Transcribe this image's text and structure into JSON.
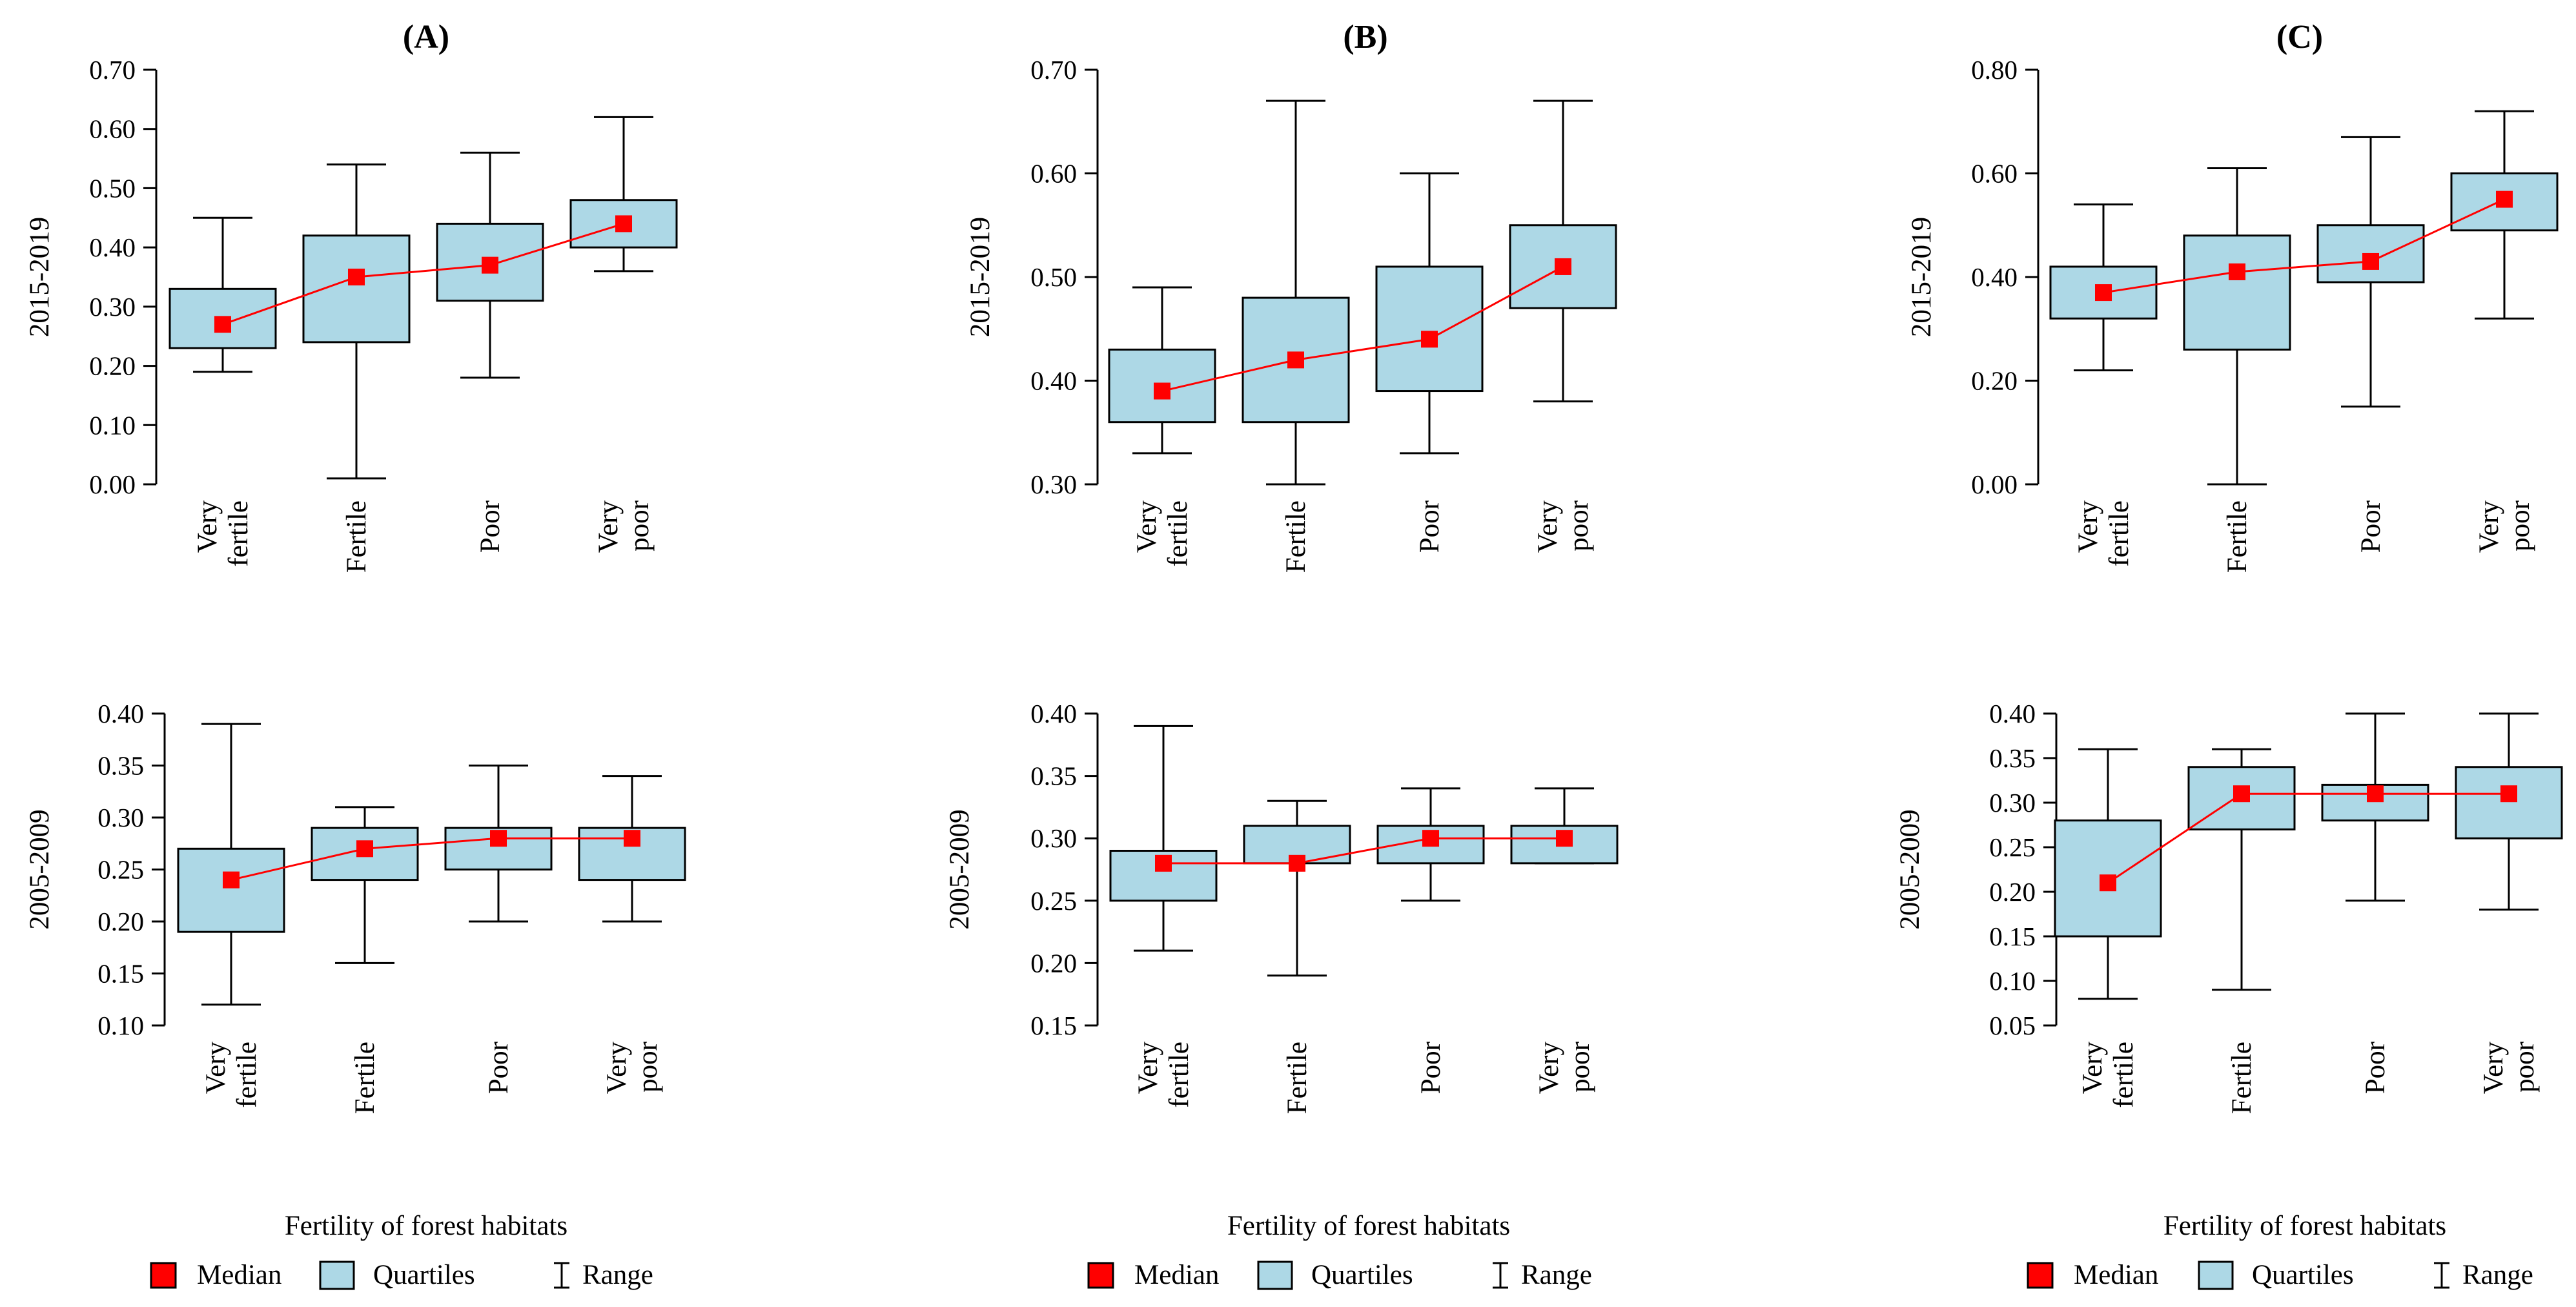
{
  "colors": {
    "median": "#ff0000",
    "box": "#add8e6",
    "line": "#000000",
    "median_line": "#ff0000"
  },
  "legend": {
    "median_label": "Median",
    "quartiles_label": "Quartiles",
    "range_label": "Range"
  },
  "x_axis_title": "Fertility of forest habitats",
  "categories": [
    [
      "Very",
      "fertile"
    ],
    [
      "Fertile"
    ],
    [
      "Poor"
    ],
    [
      "Very",
      "poor"
    ]
  ],
  "chart_data": [
    {
      "type": "box",
      "title": "(A)",
      "ylabel": "2015-2019",
      "ylim": [
        0,
        0.7
      ],
      "yticks": [
        "0.00",
        "0.10",
        "0.20",
        "0.30",
        "0.40",
        "0.50",
        "0.60",
        "0.70"
      ],
      "min": [
        0.19,
        0.01,
        0.18,
        0.36
      ],
      "q1": [
        0.23,
        0.24,
        0.31,
        0.4
      ],
      "median": [
        0.27,
        0.35,
        0.37,
        0.44
      ],
      "q3": [
        0.33,
        0.42,
        0.44,
        0.48
      ],
      "max": [
        0.45,
        0.54,
        0.56,
        0.62
      ]
    },
    {
      "type": "box",
      "title": "(B)",
      "ylabel": "2015-2019",
      "ylim": [
        0.3,
        0.7
      ],
      "yticks": [
        "0.30",
        "0.40",
        "0.50",
        "0.60",
        "0.70"
      ],
      "min": [
        0.33,
        0.3,
        0.33,
        0.38
      ],
      "q1": [
        0.36,
        0.36,
        0.39,
        0.47
      ],
      "median": [
        0.39,
        0.42,
        0.44,
        0.51
      ],
      "q3": [
        0.43,
        0.48,
        0.51,
        0.55
      ],
      "max": [
        0.49,
        0.67,
        0.6,
        0.67
      ]
    },
    {
      "type": "box",
      "title": "(C)",
      "ylabel": "2015-2019",
      "ylim": [
        0,
        0.8
      ],
      "yticks": [
        "0.00",
        "0.20",
        "0.40",
        "0.60",
        "0.80"
      ],
      "min": [
        0.22,
        0.0,
        0.15,
        0.32
      ],
      "q1": [
        0.32,
        0.26,
        0.39,
        0.49
      ],
      "median": [
        0.37,
        0.41,
        0.43,
        0.55
      ],
      "q3": [
        0.42,
        0.48,
        0.5,
        0.6
      ],
      "max": [
        0.54,
        0.61,
        0.67,
        0.72
      ]
    },
    {
      "type": "box",
      "title": "",
      "ylabel": "2005-2009",
      "ylim": [
        0.1,
        0.4
      ],
      "yticks": [
        "0.10",
        "0.15",
        "0.20",
        "0.25",
        "0.30",
        "0.35",
        "0.40"
      ],
      "min": [
        0.12,
        0.16,
        0.2,
        0.2
      ],
      "q1": [
        0.19,
        0.24,
        0.25,
        0.24
      ],
      "median": [
        0.24,
        0.27,
        0.28,
        0.28
      ],
      "q3": [
        0.27,
        0.29,
        0.29,
        0.29
      ],
      "max": [
        0.39,
        0.31,
        0.35,
        0.34
      ]
    },
    {
      "type": "box",
      "title": "",
      "ylabel": "2005-2009",
      "ylim": [
        0.15,
        0.4
      ],
      "yticks": [
        "0.15",
        "0.20",
        "0.25",
        "0.30",
        "0.35",
        "0.40"
      ],
      "min": [
        0.21,
        0.19,
        0.25,
        0.28
      ],
      "q1": [
        0.25,
        0.28,
        0.28,
        0.28
      ],
      "median": [
        0.28,
        0.28,
        0.3,
        0.3
      ],
      "q3": [
        0.29,
        0.31,
        0.31,
        0.31
      ],
      "max": [
        0.39,
        0.33,
        0.34,
        0.34
      ]
    },
    {
      "type": "box",
      "title": "",
      "ylabel": "2005-2009",
      "ylim": [
        0.05,
        0.4
      ],
      "yticks": [
        "0.05",
        "0.10",
        "0.15",
        "0.20",
        "0.25",
        "0.30",
        "0.35",
        "0.40"
      ],
      "min": [
        0.08,
        0.09,
        0.19,
        0.18
      ],
      "q1": [
        0.15,
        0.27,
        0.28,
        0.26
      ],
      "median": [
        0.21,
        0.31,
        0.31,
        0.31
      ],
      "q3": [
        0.28,
        0.34,
        0.32,
        0.34
      ],
      "max": [
        0.36,
        0.36,
        0.4,
        0.4
      ]
    }
  ]
}
